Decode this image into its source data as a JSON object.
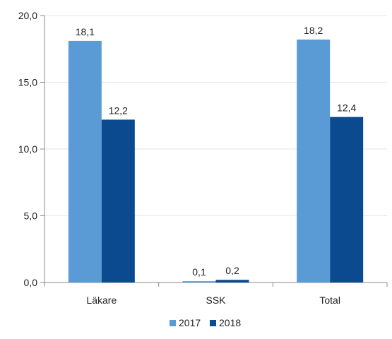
{
  "chart_data": {
    "type": "bar",
    "categories": [
      "Läkare",
      "SSK",
      "Total"
    ],
    "series": [
      {
        "name": "2017",
        "values": [
          18.1,
          0.1,
          18.2
        ],
        "labels": [
          "18,1",
          "0,1",
          "18,2"
        ],
        "color": "#5B9BD5"
      },
      {
        "name": "2018",
        "values": [
          12.2,
          0.2,
          12.4
        ],
        "labels": [
          "12,2",
          "0,2",
          "12,4"
        ],
        "color": "#0B4A8F"
      }
    ],
    "ylim": [
      0,
      20
    ],
    "yticks": [
      0,
      5,
      10,
      15,
      20
    ],
    "ytick_labels": [
      "0,0",
      "5,0",
      "10,0",
      "15,0",
      "20,0"
    ],
    "grid": true,
    "legend_position": "bottom",
    "title": "",
    "xlabel": "",
    "ylabel": ""
  }
}
